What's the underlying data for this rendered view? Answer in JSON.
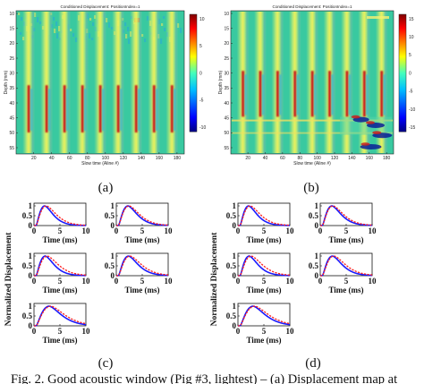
{
  "heatmaps": [
    {
      "id": "a",
      "title": "Conditioned Displacement: PositionIndex=1",
      "ylabel": "Depth (mm)",
      "xlabel": "Slow time (Aline #)",
      "yticks": [
        "10",
        "15",
        "20",
        "25",
        "30",
        "35",
        "40",
        "45",
        "50",
        "55"
      ],
      "xticks": [
        "20",
        "40",
        "60",
        "80",
        "100",
        "120",
        "140",
        "160",
        "180"
      ],
      "colorbar_ticks": [
        "10",
        "5",
        "0",
        "-5",
        "-10"
      ],
      "colors": {
        "background": "#39c9a0",
        "positive": "#c81e1e",
        "negative": "#1e3cc8"
      }
    },
    {
      "id": "b",
      "title": "Conditioned Displacement: PositionIndex=1",
      "ylabel": "Depth (mm)",
      "xlabel": "Slow time (Aline #)",
      "yticks": [
        "10",
        "15",
        "20",
        "25",
        "30",
        "35",
        "40",
        "45",
        "50",
        "55"
      ],
      "xticks": [
        "20",
        "40",
        "60",
        "80",
        "100",
        "120",
        "140",
        "160",
        "180"
      ],
      "colorbar_ticks": [
        "15",
        "10",
        "5",
        "0",
        "-5",
        "-10",
        "-15"
      ],
      "colors": {
        "background": "#39c9a0",
        "positive": "#c81e1e",
        "negative": "#1e3cc8"
      }
    }
  ],
  "panel_groups": [
    {
      "id": "c",
      "ylabel": "Normalized Displacement",
      "xlabel": "Time (ms)",
      "xticks": [
        "0",
        "5",
        "10"
      ],
      "yticks": [
        "1",
        "0.5",
        "0"
      ],
      "series_colors": [
        "#1a1aff",
        "#ff1a1a"
      ]
    },
    {
      "id": "d",
      "ylabel": "Normalized Displacement",
      "xlabel": "Time (ms)",
      "xticks": [
        "0",
        "5",
        "10"
      ],
      "yticks": [
        "1",
        "0.5",
        "0"
      ],
      "series_colors": [
        "#1a1aff",
        "#ff1a1a"
      ]
    }
  ],
  "labels": {
    "a": "(a)",
    "b": "(b)",
    "c": "(c)",
    "d": "(d)"
  },
  "caption": "Fig. 2. Good acoustic window (Pig #3, lightest) – (a) Displacement map at"
}
